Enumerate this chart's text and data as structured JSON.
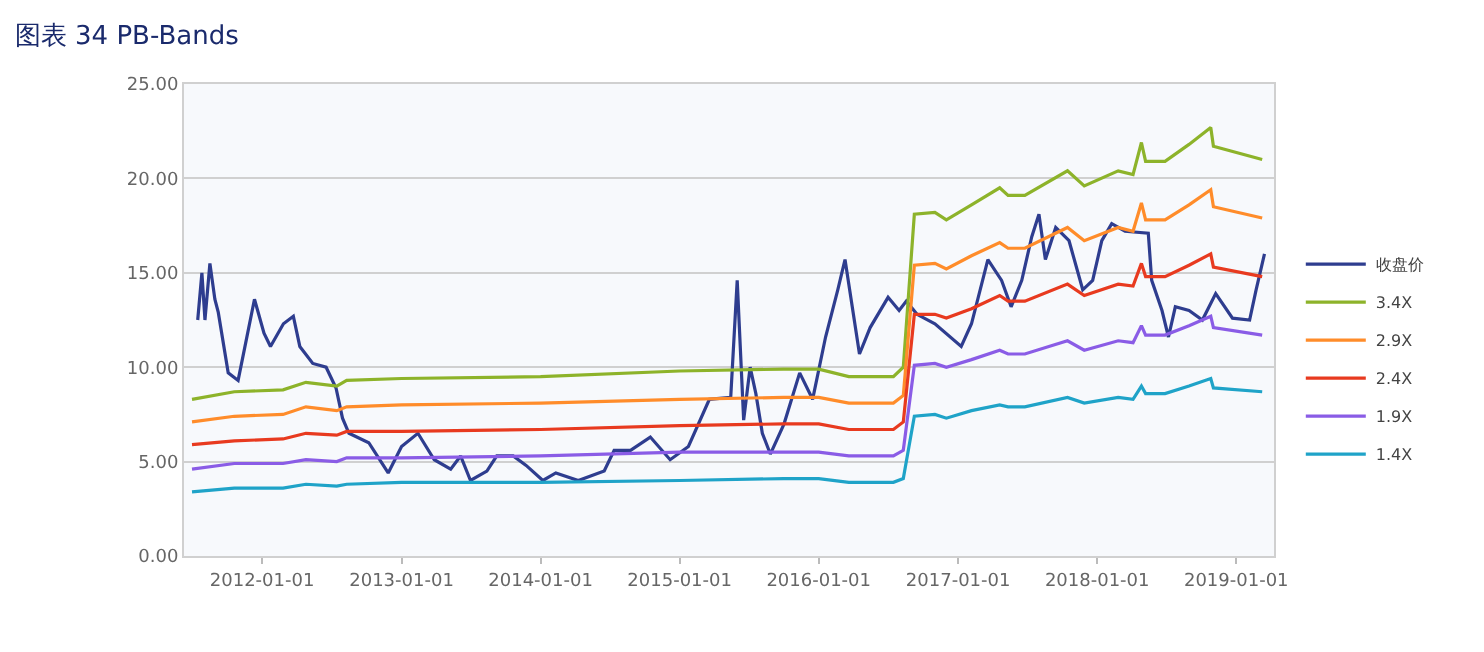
{
  "chart_data": {
    "type": "line",
    "title": "图表 34 PB-Bands",
    "xlim": [
      "2011-06-10",
      "2019-04-10"
    ],
    "xticks": [
      "2012-01-01",
      "2013-01-01",
      "2014-01-01",
      "2015-01-01",
      "2016-01-01",
      "2017-01-01",
      "2018-01-01",
      "2019-01-01"
    ],
    "ylim": [
      0,
      25
    ],
    "yticks": [
      {
        "value": 0,
        "label": "0.00"
      },
      {
        "value": 5,
        "label": "5.00"
      },
      {
        "value": 10,
        "label": "10.00"
      },
      {
        "value": 15,
        "label": "15.00"
      },
      {
        "value": 20,
        "label": "20.00"
      },
      {
        "value": 25,
        "label": "25.00"
      }
    ],
    "grid": "y",
    "legend": "right",
    "marker": "none",
    "line_style": "solid",
    "series": [
      {
        "name": "收盘价",
        "color": "#2e3d8f",
        "x": [
          "2011-07-16",
          "2011-07-27",
          "2011-08-04",
          "2011-08-17",
          "2011-08-30",
          "2011-09-08",
          "2011-10-04",
          "2011-10-30",
          "2011-11-16",
          "2011-12-12",
          "2012-01-06",
          "2012-01-23",
          "2012-02-26",
          "2012-03-23",
          "2012-04-09",
          "2012-05-13",
          "2012-06-17",
          "2012-07-13",
          "2012-07-30",
          "2012-08-16",
          "2012-10-07",
          "2012-11-27",
          "2013-01-01",
          "2013-02-13",
          "2013-03-28",
          "2013-05-10",
          "2013-06-05",
          "2013-07-01",
          "2013-08-13",
          "2013-09-08",
          "2013-10-21",
          "2013-11-24",
          "2014-01-07",
          "2014-02-10",
          "2014-04-10",
          "2014-06-17",
          "2014-07-13",
          "2014-08-25",
          "2014-10-16",
          "2014-12-07",
          "2015-01-24",
          "2015-03-20",
          "2015-05-15",
          "2015-06-01",
          "2015-06-18",
          "2015-07-05",
          "2015-07-20",
          "2015-08-06",
          "2015-08-27",
          "2015-10-02",
          "2015-11-12",
          "2015-12-16",
          "2016-01-19",
          "2016-02-20",
          "2016-03-10",
          "2016-04-17",
          "2016-05-15",
          "2016-07-01",
          "2016-07-30",
          "2016-08-18",
          "2016-09-15",
          "2016-11-01",
          "2017-01-09",
          "2017-02-05",
          "2017-03-20",
          "2017-04-25",
          "2017-05-20",
          "2017-06-17",
          "2017-07-13",
          "2017-08-01",
          "2017-08-18",
          "2017-09-14",
          "2017-10-19",
          "2017-11-24",
          "2017-12-20",
          "2018-01-13",
          "2018-02-08",
          "2018-03-15",
          "2018-05-15",
          "2018-05-24",
          "2018-06-20",
          "2018-07-07",
          "2018-07-25",
          "2018-08-30",
          "2018-10-04",
          "2018-11-08",
          "2018-12-22",
          "2019-02-05",
          "2019-02-22",
          "2019-03-16"
        ],
        "values": [
          12.5,
          15.0,
          12.5,
          15.5,
          13.6,
          12.9,
          9.7,
          9.3,
          11.0,
          13.6,
          11.8,
          11.1,
          12.3,
          12.7,
          11.1,
          10.2,
          10.0,
          8.9,
          7.3,
          6.5,
          6.0,
          4.4,
          5.8,
          6.5,
          5.1,
          4.6,
          5.3,
          4.0,
          4.5,
          5.3,
          5.3,
          4.8,
          4.0,
          4.4,
          4.0,
          4.5,
          5.6,
          5.6,
          6.3,
          5.1,
          5.8,
          8.3,
          8.4,
          14.6,
          7.2,
          10.0,
          8.6,
          6.5,
          5.4,
          7.0,
          9.7,
          8.3,
          11.6,
          14.1,
          15.7,
          10.7,
          12.1,
          13.7,
          13.0,
          13.5,
          12.8,
          12.3,
          11.1,
          12.3,
          15.7,
          14.6,
          13.2,
          14.6,
          16.9,
          18.1,
          15.7,
          17.4,
          16.7,
          14.1,
          14.6,
          16.7,
          17.6,
          17.2,
          17.1,
          14.6,
          13.0,
          11.6,
          13.2,
          13.0,
          12.5,
          13.9,
          12.6,
          12.5,
          14.1,
          16.0
        ]
      },
      {
        "name": "3.4X",
        "color": "#8db32a",
        "values": [
          8.3,
          8.7,
          8.8,
          9.2,
          9.0,
          9.3,
          9.4,
          9.5,
          9.8,
          9.9,
          9.9,
          9.5,
          9.5,
          10.0,
          18.1,
          18.2,
          17.8,
          18.6,
          19.5,
          19.1,
          19.1,
          20.4,
          19.6,
          20.4,
          20.2,
          21.9,
          20.9,
          20.9,
          21.8,
          22.7,
          21.7,
          21.0
        ]
      },
      {
        "name": "2.9X",
        "color": "#ff8c2a",
        "values": [
          7.1,
          7.4,
          7.5,
          7.9,
          7.7,
          7.9,
          8.0,
          8.1,
          8.3,
          8.4,
          8.4,
          8.1,
          8.1,
          8.5,
          15.4,
          15.5,
          15.2,
          15.9,
          16.6,
          16.3,
          16.3,
          17.4,
          16.7,
          17.4,
          17.2,
          18.7,
          17.8,
          17.8,
          18.6,
          19.4,
          18.5,
          17.9
        ]
      },
      {
        "name": "2.4X",
        "color": "#e83a1f",
        "values": [
          5.9,
          6.1,
          6.2,
          6.5,
          6.4,
          6.6,
          6.6,
          6.7,
          6.9,
          7.0,
          7.0,
          6.7,
          6.7,
          7.1,
          12.8,
          12.8,
          12.6,
          13.1,
          13.8,
          13.5,
          13.5,
          14.4,
          13.8,
          14.4,
          14.3,
          15.5,
          14.8,
          14.8,
          15.4,
          16.0,
          15.3,
          14.8
        ]
      },
      {
        "name": "1.9X",
        "color": "#8a5ce6",
        "values": [
          4.6,
          4.9,
          4.9,
          5.1,
          5.0,
          5.2,
          5.2,
          5.3,
          5.5,
          5.5,
          5.5,
          5.3,
          5.3,
          5.6,
          10.1,
          10.2,
          10.0,
          10.4,
          10.9,
          10.7,
          10.7,
          11.4,
          10.9,
          11.4,
          11.3,
          12.2,
          11.7,
          11.7,
          12.2,
          12.7,
          12.1,
          11.7
        ]
      },
      {
        "name": "1.4X",
        "color": "#1fa3c8",
        "values": [
          3.4,
          3.6,
          3.6,
          3.8,
          3.7,
          3.8,
          3.9,
          3.9,
          4.0,
          4.1,
          4.1,
          3.9,
          3.9,
          4.1,
          7.4,
          7.5,
          7.3,
          7.7,
          8.0,
          7.9,
          7.9,
          8.4,
          8.1,
          8.4,
          8.3,
          9.0,
          8.6,
          8.6,
          9.0,
          9.4,
          8.9,
          8.7
        ]
      }
    ],
    "x": [
      "2011-07-01",
      "2011-10-20",
      "2012-02-25",
      "2012-04-25",
      "2012-07-15",
      "2012-08-10",
      "2013-01-01",
      "2014-01-01",
      "2015-01-01",
      "2015-10-01",
      "2016-01-01",
      "2016-03-20",
      "2016-07-15",
      "2016-08-10",
      "2016-09-08",
      "2016-11-01",
      "2016-12-01",
      "2017-02-05",
      "2017-04-20",
      "2017-05-12",
      "2017-06-25",
      "2017-10-15",
      "2017-11-28",
      "2018-02-25",
      "2018-04-05",
      "2018-04-27",
      "2018-05-08",
      "2018-06-28",
      "2018-08-30",
      "2018-10-26",
      "2018-11-02",
      "2019-03-10"
    ]
  }
}
